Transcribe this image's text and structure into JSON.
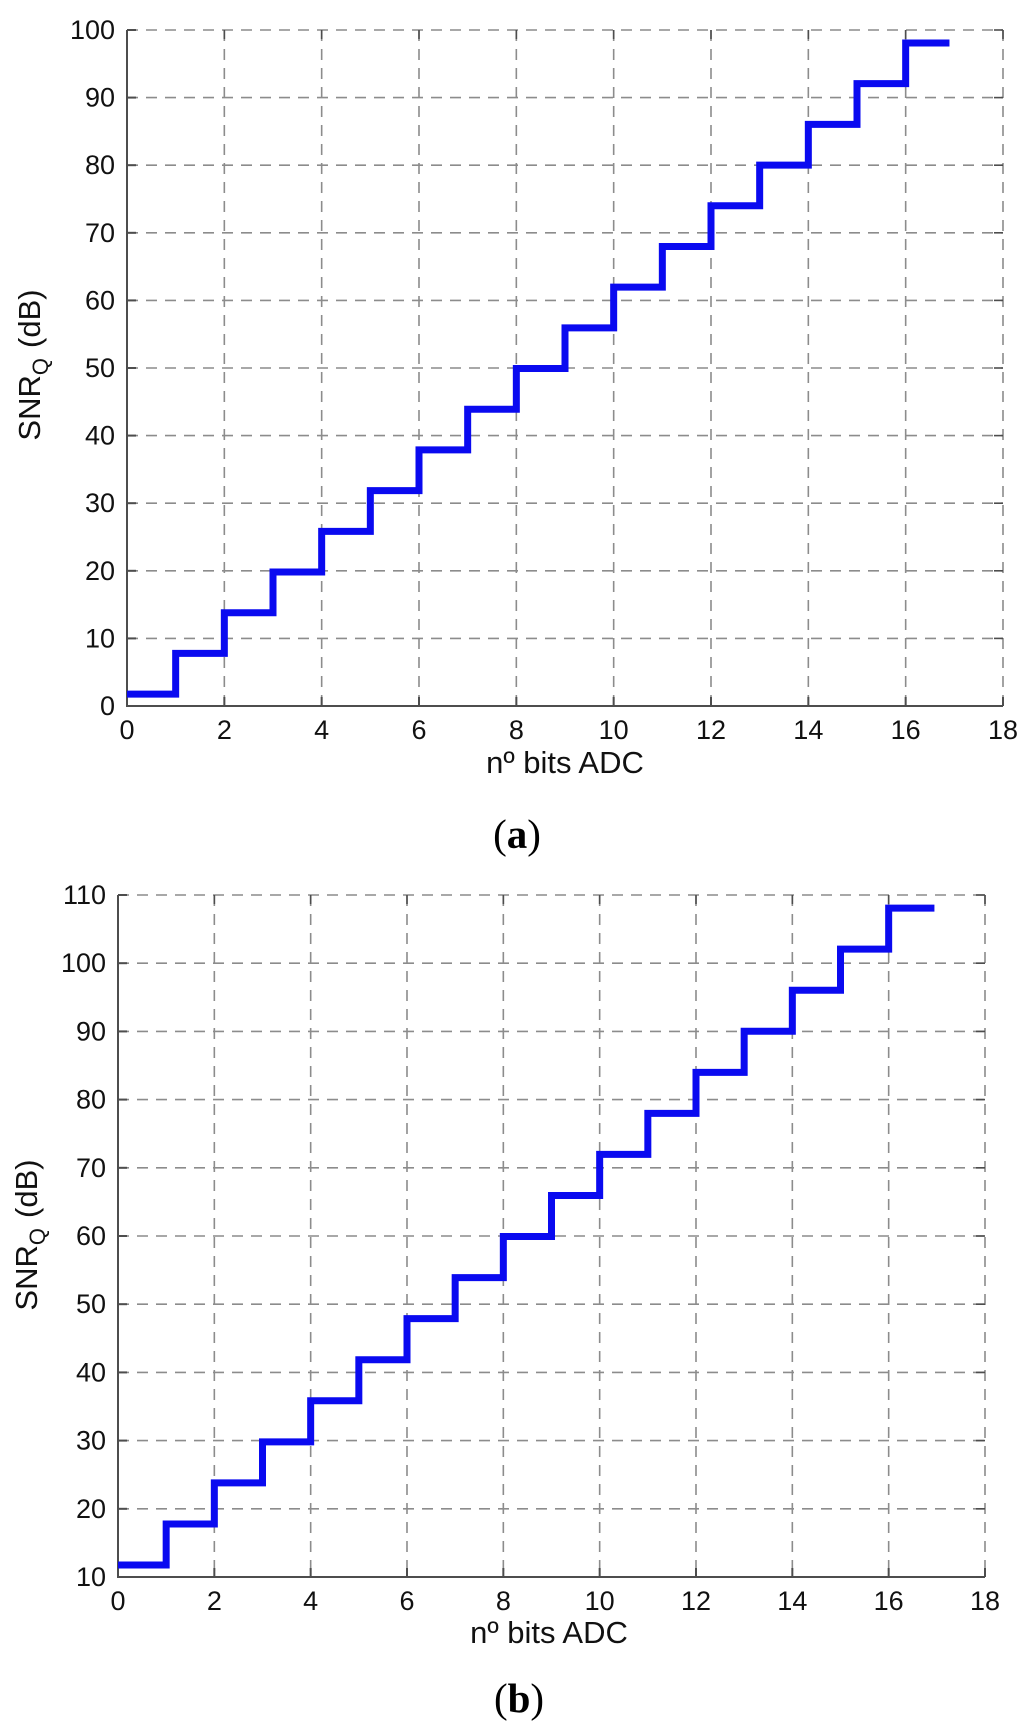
{
  "figure": {
    "background": "#ffffff",
    "line_color": "#0a0af0",
    "grid_color": "#8c8c8c",
    "axis_color": "#4d4d4d",
    "tick_label_color": "#111111"
  },
  "chart_data": [
    {
      "id": "a",
      "type": "step",
      "title": "",
      "xlabel": "nº bits ADC",
      "ylabel": {
        "main": "SNR",
        "sub": "Q",
        "unit": "(dB)"
      },
      "caption": {
        "open": "(",
        "letter": "a",
        "close": ")"
      },
      "xlim": [
        0,
        18
      ],
      "ylim": [
        0,
        100
      ],
      "xticks": [
        0,
        2,
        4,
        6,
        8,
        10,
        12,
        14,
        16,
        18
      ],
      "yticks": [
        0,
        10,
        20,
        30,
        40,
        50,
        60,
        70,
        80,
        90,
        100
      ],
      "grid": "dashed",
      "legend": "none",
      "x": [
        0,
        1,
        2,
        3,
        4,
        5,
        6,
        7,
        8,
        9,
        10,
        11,
        12,
        13,
        14,
        15,
        16
      ],
      "y": [
        1.76,
        7.78,
        13.8,
        19.82,
        25.84,
        31.86,
        37.88,
        43.9,
        49.92,
        55.94,
        61.96,
        67.98,
        74.0,
        80.02,
        86.04,
        92.06,
        98.08
      ],
      "x_end": 16.9
    },
    {
      "id": "b",
      "type": "step",
      "title": "",
      "xlabel": "nº bits ADC",
      "ylabel": {
        "main": "SNR",
        "sub": "Q",
        "unit": "(dB)"
      },
      "caption": {
        "open": "(",
        "letter": "b",
        "close": ")"
      },
      "xlim": [
        0,
        18
      ],
      "ylim": [
        10,
        110
      ],
      "xticks": [
        0,
        2,
        4,
        6,
        8,
        10,
        12,
        14,
        16,
        18
      ],
      "yticks": [
        10,
        20,
        30,
        40,
        50,
        60,
        70,
        80,
        90,
        100,
        110
      ],
      "grid": "dashed",
      "legend": "none",
      "x": [
        0,
        1,
        2,
        3,
        4,
        5,
        6,
        7,
        8,
        9,
        10,
        11,
        12,
        13,
        14,
        15,
        16
      ],
      "y": [
        11.76,
        17.78,
        23.8,
        29.82,
        35.84,
        41.86,
        47.88,
        53.9,
        59.92,
        65.94,
        71.96,
        77.98,
        84.0,
        90.02,
        96.04,
        102.06,
        108.08
      ],
      "x_end": 16.95
    }
  ]
}
